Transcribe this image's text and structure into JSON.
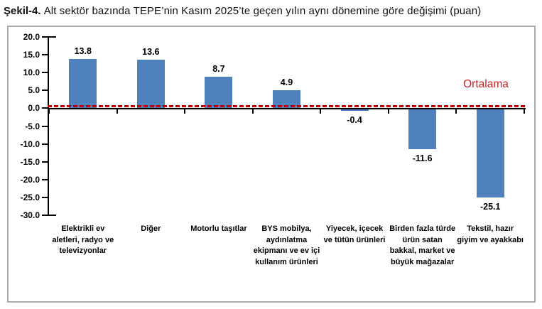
{
  "figure": {
    "label": "Şekil-4.",
    "title": "Alt sektör bazında TEPE’nin Kasım 2025’te geçen yılın aynı dönemine göre değişimi (puan)"
  },
  "chart_data": {
    "type": "bar",
    "title": "Şekil-4. Alt sektör bazında TEPE’nin Kasım 2025’te geçen yılın aynı dönemine göre değişimi (puan)",
    "categories": [
      "Elektrikli ev aletleri, radyo ve televizyonlar",
      "Diğer",
      "Motorlu taşıtlar",
      "BYS mobilya, aydınlatma ekipmanı ve ev içi kullanım ürünleri",
      "Yiyecek, içecek ve tütün ürünleri",
      "Birden fazla türde ürün satan bakkal, market ve büyük mağazalar",
      "Tekstil, hazır giyim ve ayakkabı"
    ],
    "values": [
      13.8,
      13.6,
      8.7,
      4.9,
      -0.4,
      -11.6,
      -25.1
    ],
    "yticks": [
      "20.0",
      "15.0",
      "10.0",
      "5.0",
      "0.0",
      "-5.0",
      "-10.0",
      "-15.0",
      "-20.0",
      "-25.0",
      "-30.0"
    ],
    "ylim": [
      -30,
      20
    ],
    "xlabel": "",
    "ylabel": "",
    "grid": false,
    "legend": false,
    "bar_color": "#4F81BD",
    "axis_color": "#000000",
    "reference_line": {
      "label": "Ortalama",
      "value": 0.5,
      "color": "#C00000",
      "style": "dashed"
    }
  }
}
